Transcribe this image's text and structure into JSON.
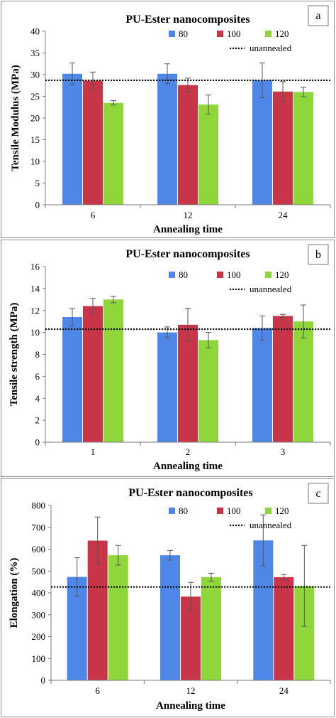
{
  "colors": {
    "s80": "#4f87e8",
    "s100": "#c83548",
    "s120": "#8fd63a",
    "err": "#555555",
    "ref": "#111111"
  },
  "chart_data": [
    {
      "type": "bar",
      "panel_label": "a",
      "title": "PU-Ester nanocomposites",
      "xlabel": "Annealing time",
      "ylabel": "Tensile Modulus (MPa)",
      "ylim": [
        0,
        40
      ],
      "yticks": [
        0,
        5,
        10,
        15,
        20,
        25,
        30,
        35,
        40
      ],
      "categories": [
        "6",
        "12",
        "24"
      ],
      "series": [
        {
          "name": "80",
          "color": "s80",
          "values": [
            30.2,
            30.2,
            28.7
          ],
          "errors": [
            2.5,
            2.3,
            4.0
          ]
        },
        {
          "name": "100",
          "color": "s100",
          "values": [
            28.6,
            27.6,
            26.1
          ],
          "errors": [
            2.0,
            1.6,
            2.3
          ]
        },
        {
          "name": "120",
          "color": "s120",
          "values": [
            23.5,
            23.1,
            26.0
          ],
          "errors": [
            0.5,
            2.2,
            1.1
          ]
        }
      ],
      "reference": {
        "name": "unannealed",
        "value": 28.7
      },
      "legend": "top-right",
      "grid": false
    },
    {
      "type": "bar",
      "panel_label": "b",
      "title": "PU-Ester nanocomposites",
      "xlabel": "Annealing  time",
      "ylabel": "Tensile strength (MPa)",
      "ylim": [
        0,
        16
      ],
      "yticks": [
        0,
        2,
        4,
        6,
        8,
        10,
        12,
        14,
        16
      ],
      "categories": [
        "1",
        "2",
        "3"
      ],
      "series": [
        {
          "name": "80",
          "color": "s80",
          "values": [
            11.4,
            10.0,
            10.4
          ],
          "errors": [
            0.8,
            0.5,
            1.1
          ]
        },
        {
          "name": "100",
          "color": "s100",
          "values": [
            12.4,
            10.7,
            11.5
          ],
          "errors": [
            0.7,
            1.5,
            0.15
          ]
        },
        {
          "name": "120",
          "color": "s120",
          "values": [
            13.0,
            9.3,
            11.0
          ],
          "errors": [
            0.3,
            0.7,
            1.5
          ]
        }
      ],
      "reference": {
        "name": "unannealed",
        "value": 10.3
      },
      "legend": "top-right",
      "grid": false
    },
    {
      "type": "bar",
      "panel_label": "c",
      "title": "PU-Ester nanocomposites",
      "xlabel": "Annealing time",
      "ylabel": "Elongation  (%)",
      "ylim": [
        0,
        800
      ],
      "yticks": [
        0,
        100,
        200,
        300,
        400,
        500,
        600,
        700,
        800
      ],
      "categories": [
        "6",
        "12",
        "24"
      ],
      "series": [
        {
          "name": "80",
          "color": "s80",
          "values": [
            473,
            572,
            640
          ],
          "errors": [
            88,
            22,
            117
          ]
        },
        {
          "name": "100",
          "color": "s100",
          "values": [
            639,
            383,
            472
          ],
          "errors": [
            108,
            65,
            12
          ]
        },
        {
          "name": "120",
          "color": "s120",
          "values": [
            572,
            472,
            432
          ],
          "errors": [
            45,
            18,
            185
          ]
        }
      ],
      "reference": {
        "name": "unannealed",
        "value": 427
      },
      "legend": "top-right",
      "grid": false
    }
  ]
}
